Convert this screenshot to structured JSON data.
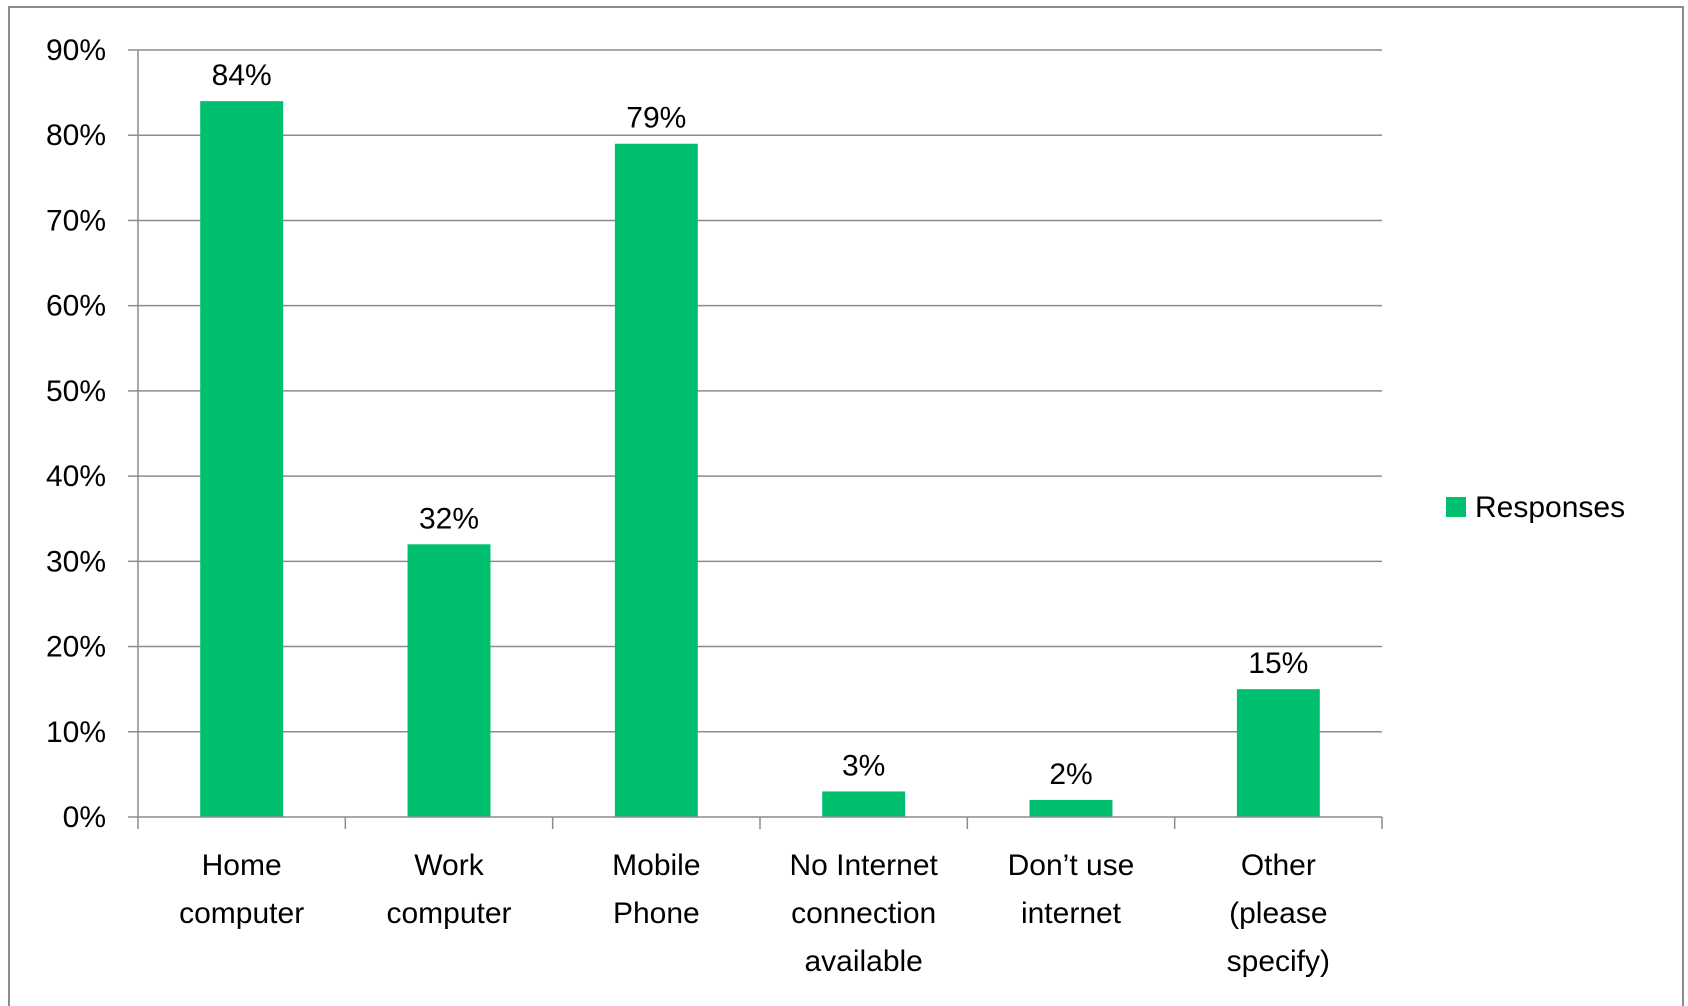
{
  "chart_data": {
    "type": "bar",
    "categories": [
      [
        "Home",
        "computer"
      ],
      [
        "Work",
        "computer"
      ],
      [
        "Mobile",
        "Phone"
      ],
      [
        "No Internet",
        "connection",
        "available"
      ],
      [
        "Don’t use",
        "internet"
      ],
      [
        "Other",
        "(please",
        "specify)"
      ]
    ],
    "series": [
      {
        "name": "Responses",
        "values": [
          84,
          32,
          79,
          3,
          2,
          15
        ],
        "color": "#00bf6f"
      }
    ],
    "data_labels": [
      "84%",
      "32%",
      "79%",
      "3%",
      "2%",
      "15%"
    ],
    "yticks": [
      "0%",
      "10%",
      "20%",
      "30%",
      "40%",
      "50%",
      "60%",
      "70%",
      "80%",
      "90%"
    ],
    "ylim": [
      0,
      90
    ],
    "grid": true,
    "legend_position": "right",
    "gridline_color": "#8c8c8c"
  }
}
